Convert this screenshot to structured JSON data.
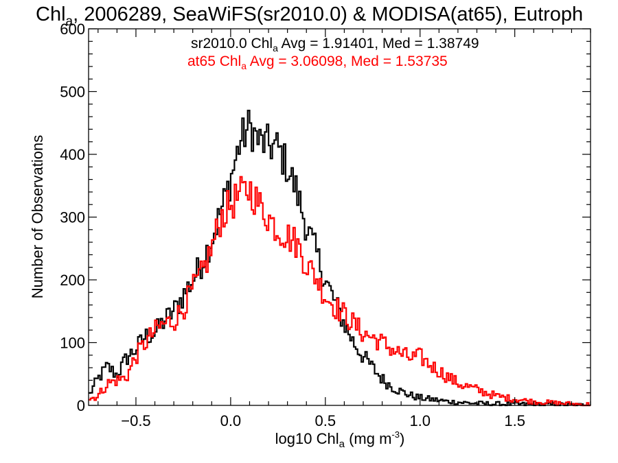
{
  "chart_data": {
    "type": "histogram",
    "title": {
      "prefix": "Chl",
      "sub": "a",
      "suffix": ", 2006289, SeaWiFS(sr2010.0) & MODISA(at65), Eutroph"
    },
    "xlabel": {
      "prefix": "log10 Chl",
      "sub": "a",
      "suffix": " (mg m",
      "sup": "-3",
      "end": ")"
    },
    "ylabel": "Number of Observations",
    "xlim": [
      -0.75,
      1.9
    ],
    "ylim": [
      0,
      600
    ],
    "x_ticks": [
      -0.5,
      0.0,
      0.5,
      1.0,
      1.5
    ],
    "x_tick_labels": [
      "−0.5",
      "0.0",
      "0.5",
      "1.0",
      "1.5"
    ],
    "y_ticks": [
      0,
      100,
      200,
      300,
      400,
      500,
      600
    ],
    "y_tick_labels": [
      "0",
      "100",
      "200",
      "300",
      "400",
      "500",
      "600"
    ],
    "grid": false,
    "series": [
      {
        "name": "sr2010.0",
        "color": "#000000",
        "stats": {
          "prefix": "sr2010.0 Chl",
          "sub": "a",
          "suffix": " Avg = 1.91401, Med = 1.38749"
        },
        "x": [
          -0.75,
          -0.7,
          -0.65,
          -0.6,
          -0.55,
          -0.5,
          -0.45,
          -0.4,
          -0.35,
          -0.3,
          -0.25,
          -0.2,
          -0.15,
          -0.1,
          -0.05,
          0.0,
          0.05,
          0.1,
          0.15,
          0.2,
          0.25,
          0.3,
          0.35,
          0.4,
          0.45,
          0.5,
          0.55,
          0.6,
          0.65,
          0.7,
          0.75,
          0.8,
          0.85,
          0.9,
          0.95,
          1.0,
          1.05,
          1.1,
          1.15,
          1.2,
          1.3,
          1.4,
          1.5,
          1.6,
          1.7,
          1.8,
          1.9
        ],
        "y": [
          15,
          42,
          62,
          48,
          75,
          90,
          110,
          115,
          135,
          150,
          175,
          200,
          228,
          265,
          310,
          360,
          420,
          445,
          420,
          415,
          410,
          380,
          340,
          285,
          245,
          200,
          165,
          130,
          100,
          78,
          60,
          42,
          30,
          22,
          16,
          12,
          10,
          8,
          6,
          5,
          3,
          2,
          2,
          1,
          1,
          0,
          0
        ]
      },
      {
        "name": "at65",
        "color": "#ff0000",
        "stats": {
          "prefix": "at65 Chl",
          "sub": "a",
          "suffix": " Avg = 3.06098, Med = 1.53735"
        },
        "x": [
          -0.75,
          -0.7,
          -0.65,
          -0.6,
          -0.55,
          -0.5,
          -0.45,
          -0.4,
          -0.35,
          -0.3,
          -0.25,
          -0.2,
          -0.15,
          -0.1,
          -0.05,
          0.0,
          0.05,
          0.1,
          0.15,
          0.2,
          0.25,
          0.3,
          0.35,
          0.4,
          0.45,
          0.5,
          0.55,
          0.6,
          0.65,
          0.7,
          0.75,
          0.8,
          0.85,
          0.9,
          0.95,
          1.0,
          1.05,
          1.1,
          1.15,
          1.2,
          1.3,
          1.4,
          1.5,
          1.6,
          1.7,
          1.8,
          1.9
        ],
        "y": [
          10,
          15,
          35,
          40,
          45,
          78,
          100,
          118,
          130,
          135,
          155,
          185,
          210,
          250,
          300,
          320,
          335,
          345,
          320,
          300,
          280,
          270,
          258,
          225,
          205,
          175,
          158,
          145,
          130,
          115,
          108,
          100,
          90,
          82,
          75,
          78,
          65,
          55,
          45,
          35,
          25,
          15,
          10,
          6,
          4,
          2,
          1
        ]
      }
    ]
  }
}
